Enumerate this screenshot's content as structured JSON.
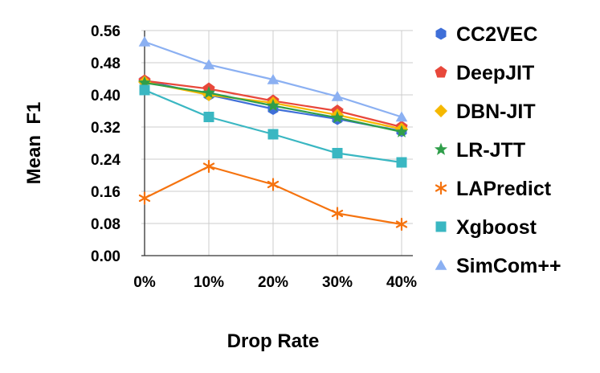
{
  "chart_data": {
    "type": "line",
    "title": "",
    "xlabel": "Drop Rate",
    "ylabel": "Mean  F1",
    "categories": [
      "0%",
      "10%",
      "20%",
      "30%",
      "40%"
    ],
    "ylim": [
      0,
      0.56
    ],
    "yticks": [
      "0.00",
      "0.08",
      "0.16",
      "0.24",
      "0.32",
      "0.40",
      "0.48",
      "0.56"
    ],
    "grid": true,
    "legend_position": "right",
    "series": [
      {
        "name": "CC2VEC",
        "marker": "hexagon",
        "color": "#3f6fd8",
        "values": [
          0.435,
          0.4,
          0.365,
          0.34,
          0.31
        ]
      },
      {
        "name": "DeepJIT",
        "marker": "pentagon",
        "color": "#e8483b",
        "values": [
          0.435,
          0.415,
          0.385,
          0.36,
          0.32
        ]
      },
      {
        "name": "DBN-JIT",
        "marker": "diamond",
        "color": "#f5b800",
        "values": [
          0.432,
          0.4,
          0.38,
          0.35,
          0.315
        ]
      },
      {
        "name": "LR-JTT",
        "marker": "star",
        "color": "#2f9e4a",
        "values": [
          0.43,
          0.405,
          0.373,
          0.343,
          0.308
        ]
      },
      {
        "name": "LAPredict",
        "marker": "asterisk",
        "color": "#f5730f",
        "values": [
          0.143,
          0.222,
          0.177,
          0.105,
          0.078
        ]
      },
      {
        "name": "Xgboost",
        "marker": "square",
        "color": "#3ab7c2",
        "values": [
          0.412,
          0.345,
          0.302,
          0.255,
          0.232
        ]
      },
      {
        "name": "SimCom++",
        "marker": "triangle",
        "color": "#8bb0f2",
        "values": [
          0.532,
          0.475,
          0.438,
          0.396,
          0.345
        ]
      }
    ]
  }
}
